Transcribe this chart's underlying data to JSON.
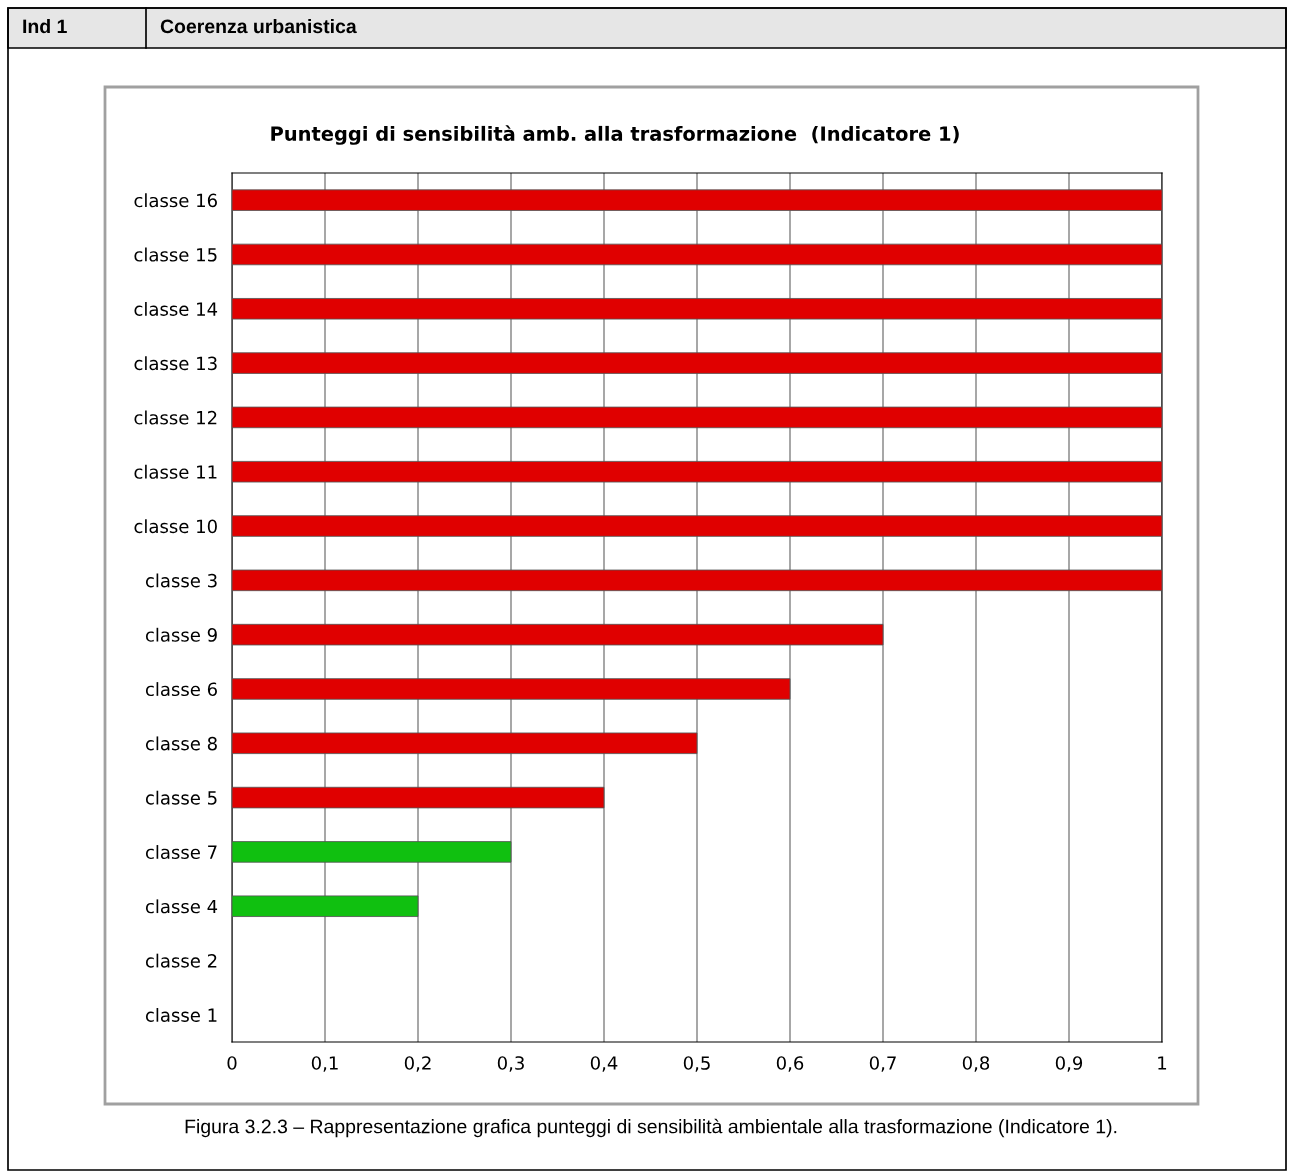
{
  "chart_data": {
    "type": "bar",
    "orientation": "horizontal",
    "title": "Punteggi di sensibilità amb. alla trasformazione  (Indicatore 1)",
    "annotations": [
      "Ind 1",
      "Coerenza urbanistica",
      "Figura 3.2.3 – Rappresentazione grafica punteggi di sensibilità ambientale alla trasformazione (Indicatore 1)."
    ],
    "categories": [
      "classe 16",
      "classe 15",
      "classe 14",
      "classe 13",
      "classe 12",
      "classe 11",
      "classe 10",
      "classe 3",
      "classe 9",
      "classe 6",
      "classe 8",
      "classe 5",
      "classe 7",
      "classe 4",
      "classe 2",
      "classe 1"
    ],
    "values": [
      1,
      1,
      1,
      1,
      1,
      1,
      1,
      1,
      0.7,
      0.6,
      0.5,
      0.4,
      0.3,
      0.2,
      0,
      0
    ],
    "colors": [
      "#e00000",
      "#e00000",
      "#e00000",
      "#e00000",
      "#e00000",
      "#e00000",
      "#e00000",
      "#e00000",
      "#e00000",
      "#e00000",
      "#e00000",
      "#e00000",
      "#10c010",
      "#10c010",
      "#e00000",
      "#e00000"
    ],
    "xlim": [
      0,
      1
    ],
    "xticks": [
      0,
      {
        "value": 0.1,
        "label": "0,1"
      },
      {
        "value": 0.2,
        "label": "0,2"
      },
      {
        "value": 0.3,
        "label": "0,3"
      },
      {
        "value": 0.4,
        "label": "0,4"
      },
      {
        "value": 0.5,
        "label": "0,5"
      },
      {
        "value": 0.6,
        "label": "0,6"
      },
      {
        "value": 0.7,
        "label": "0,7"
      },
      {
        "value": 0.8,
        "label": "0,8"
      },
      {
        "value": 0.9,
        "label": "0,9"
      },
      1
    ],
    "grid": "x",
    "legend": false
  }
}
